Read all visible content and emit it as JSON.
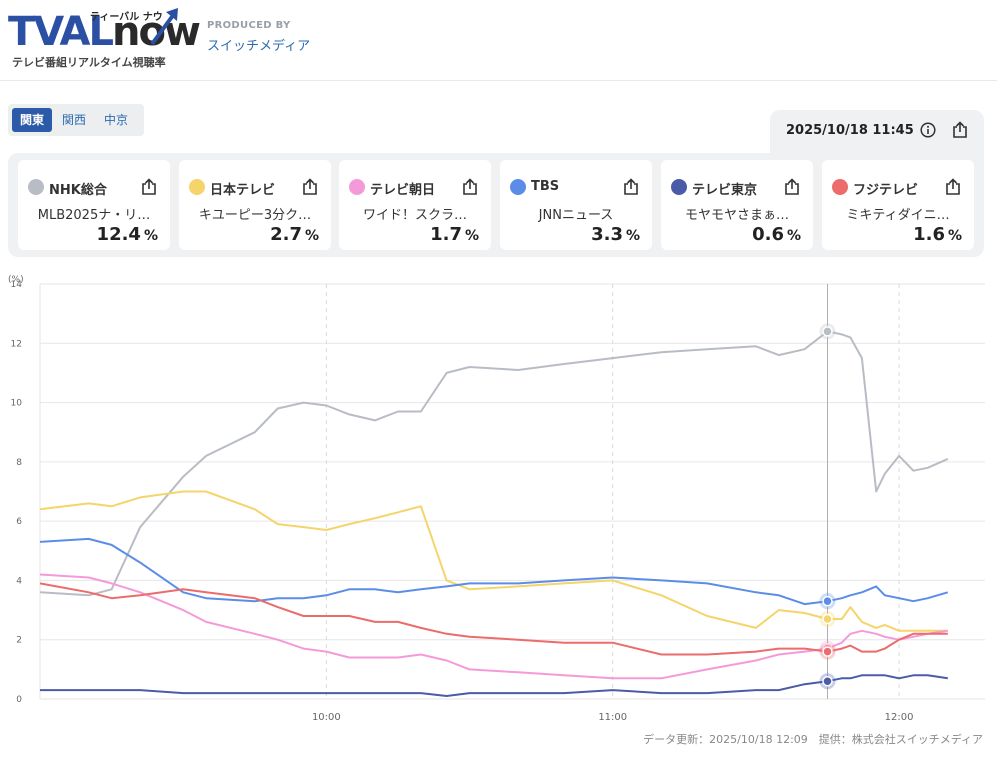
{
  "header": {
    "logo_main_a": "TVAL",
    "logo_main_b": "now",
    "logo_kana": "ティーバル ナウ",
    "logo_sub": "テレビ番組リアルタイム視聴率",
    "produced_label": "PRODUCED BY",
    "produced_name": "スイッチメディア"
  },
  "regions": [
    {
      "label": "関東",
      "active": true
    },
    {
      "label": "関西",
      "active": false
    },
    {
      "label": "中京",
      "active": false
    }
  ],
  "datetime": "2025/10/18 11:45",
  "icons": {
    "info": "info-icon",
    "share": "share-icon"
  },
  "channels": [
    {
      "name": "NHK総合",
      "program": "MLB2025ナ・リ…",
      "rating": "12.4",
      "unit": "%",
      "color": "#b8bcc4"
    },
    {
      "name": "日本テレビ",
      "program": "キユーピー3分ク…",
      "rating": "2.7",
      "unit": "%",
      "color": "#f5d46b"
    },
    {
      "name": "テレビ朝日",
      "program": "ワイド！スクラ…",
      "rating": "1.7",
      "unit": "%",
      "color": "#f59ad8"
    },
    {
      "name": "TBS",
      "program": "JNNニュース",
      "rating": "3.3",
      "unit": "%",
      "color": "#5b8de8"
    },
    {
      "name": "テレビ東京",
      "program": "モヤモヤさまぁ…",
      "rating": "0.6",
      "unit": "%",
      "color": "#4a5ca8"
    },
    {
      "name": "フジテレビ",
      "program": "ミキティダイニ…",
      "rating": "1.6",
      "unit": "%",
      "color": "#ec6b6b"
    }
  ],
  "chart_data": {
    "type": "line",
    "unit_label": "(%)",
    "ylim": [
      0,
      14
    ],
    "yticks": [
      0,
      2,
      4,
      6,
      8,
      10,
      12,
      14
    ],
    "xlim_minutes": [
      9.0,
      12.3
    ],
    "xticks": [
      {
        "label": "10:00",
        "t": 10.0
      },
      {
        "label": "11:00",
        "t": 11.0
      },
      {
        "label": "12:00",
        "t": 12.0
      }
    ],
    "cursor_time": 11.75,
    "x": [
      9.0,
      9.17,
      9.25,
      9.35,
      9.5,
      9.58,
      9.75,
      9.83,
      9.92,
      10.0,
      10.08,
      10.17,
      10.25,
      10.33,
      10.42,
      10.5,
      10.67,
      10.83,
      11.0,
      11.17,
      11.33,
      11.5,
      11.58,
      11.67,
      11.75,
      11.8,
      11.83,
      11.87,
      11.92,
      11.95,
      12.0,
      12.05,
      12.1,
      12.17
    ],
    "series": [
      {
        "name": "NHK総合",
        "color": "#b8bcc4",
        "values": [
          3.6,
          3.5,
          3.7,
          5.8,
          7.5,
          8.2,
          9.0,
          9.8,
          10.0,
          9.9,
          9.6,
          9.4,
          9.7,
          9.7,
          11.0,
          11.2,
          11.1,
          11.3,
          11.5,
          11.7,
          11.8,
          11.9,
          11.6,
          11.8,
          12.4,
          12.3,
          12.2,
          11.5,
          7.0,
          7.6,
          8.2,
          7.7,
          7.8,
          8.1
        ]
      },
      {
        "name": "日本テレビ",
        "color": "#f5d46b",
        "values": [
          6.4,
          6.6,
          6.5,
          6.8,
          7.0,
          7.0,
          6.4,
          5.9,
          5.8,
          5.7,
          5.9,
          6.1,
          6.3,
          6.5,
          4.0,
          3.7,
          3.8,
          3.9,
          4.0,
          3.5,
          2.8,
          2.4,
          3.0,
          2.9,
          2.7,
          2.7,
          3.1,
          2.6,
          2.4,
          2.5,
          2.3,
          2.3,
          2.3,
          2.3
        ]
      },
      {
        "name": "テレビ朝日",
        "color": "#f59ad8",
        "values": [
          4.2,
          4.1,
          3.9,
          3.6,
          3.0,
          2.6,
          2.2,
          2.0,
          1.7,
          1.6,
          1.4,
          1.4,
          1.4,
          1.5,
          1.3,
          1.0,
          0.9,
          0.8,
          0.7,
          0.7,
          1.0,
          1.3,
          1.5,
          1.6,
          1.7,
          1.9,
          2.2,
          2.3,
          2.2,
          2.1,
          2.0,
          2.1,
          2.2,
          2.3
        ]
      },
      {
        "name": "TBS",
        "color": "#5b8de8",
        "values": [
          5.3,
          5.4,
          5.2,
          4.6,
          3.6,
          3.4,
          3.3,
          3.4,
          3.4,
          3.5,
          3.7,
          3.7,
          3.6,
          3.7,
          3.8,
          3.9,
          3.9,
          4.0,
          4.1,
          4.0,
          3.9,
          3.6,
          3.5,
          3.2,
          3.3,
          3.4,
          3.5,
          3.6,
          3.8,
          3.5,
          3.4,
          3.3,
          3.4,
          3.6
        ]
      },
      {
        "name": "テレビ東京",
        "color": "#4a5ca8",
        "values": [
          0.3,
          0.3,
          0.3,
          0.3,
          0.2,
          0.2,
          0.2,
          0.2,
          0.2,
          0.2,
          0.2,
          0.2,
          0.2,
          0.2,
          0.1,
          0.2,
          0.2,
          0.2,
          0.3,
          0.2,
          0.2,
          0.3,
          0.3,
          0.5,
          0.6,
          0.7,
          0.7,
          0.8,
          0.8,
          0.8,
          0.7,
          0.8,
          0.8,
          0.7
        ]
      },
      {
        "name": "フジテレビ",
        "color": "#ec6b6b",
        "values": [
          3.9,
          3.6,
          3.4,
          3.5,
          3.7,
          3.6,
          3.4,
          3.1,
          2.8,
          2.8,
          2.8,
          2.6,
          2.6,
          2.4,
          2.2,
          2.1,
          2.0,
          1.9,
          1.9,
          1.5,
          1.5,
          1.6,
          1.7,
          1.7,
          1.6,
          1.7,
          1.8,
          1.6,
          1.6,
          1.7,
          2.0,
          2.2,
          2.2,
          2.2
        ]
      }
    ]
  },
  "footer": "データ更新：2025/10/18 12:09　提供：株式会社スイッチメディア"
}
